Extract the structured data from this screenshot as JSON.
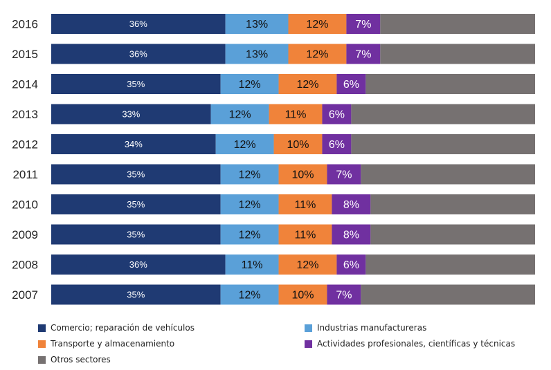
{
  "chart_data": {
    "type": "bar",
    "orientation": "horizontal",
    "stacked": "percent",
    "categories": [
      "2016",
      "2015",
      "2014",
      "2013",
      "2012",
      "2011",
      "2010",
      "2009",
      "2008",
      "2007"
    ],
    "series": [
      {
        "name": "Comercio; reparación de vehículos",
        "color": "#1f3a73",
        "values": [
          36,
          36,
          35,
          33,
          34,
          35,
          35,
          35,
          36,
          35
        ],
        "labels": [
          "36%",
          "36%",
          "35%",
          "33%",
          "34%",
          "35%",
          "35%",
          "35%",
          "36%",
          "35%"
        ]
      },
      {
        "name": "Industrias manufactureras",
        "color": "#5aa0d8",
        "values": [
          13,
          13,
          12,
          12,
          12,
          12,
          12,
          12,
          11,
          12
        ],
        "labels": [
          "13%",
          "13%",
          "12%",
          "12%",
          "12%",
          "12%",
          "12%",
          "12%",
          "11%",
          "12%"
        ]
      },
      {
        "name": "Transporte y almacenamiento",
        "color": "#f0833a",
        "values": [
          12,
          12,
          12,
          11,
          10,
          10,
          11,
          11,
          12,
          10
        ],
        "labels": [
          "12%",
          "12%",
          "12%",
          "11%",
          "10%",
          "10%",
          "11%",
          "11%",
          "12%",
          "10%"
        ]
      },
      {
        "name": "Actividades profesionales, científicas y técnicas",
        "color": "#7030a0",
        "values": [
          7,
          7,
          6,
          6,
          6,
          7,
          8,
          8,
          6,
          7
        ],
        "labels": [
          "7%",
          "7%",
          "6%",
          "6%",
          "6%",
          "7%",
          "8%",
          "8%",
          "6%",
          "7%"
        ]
      },
      {
        "name": "Otros sectores",
        "color": "#767171",
        "values": [
          32,
          32,
          35,
          38,
          38,
          36,
          34,
          34,
          35,
          36
        ],
        "labels": [
          "",
          "",
          "",
          "",
          "",
          "",
          "",
          "",
          "",
          ""
        ]
      }
    ],
    "xlim": [
      0,
      100
    ],
    "grid": false,
    "legend_position": "bottom"
  }
}
